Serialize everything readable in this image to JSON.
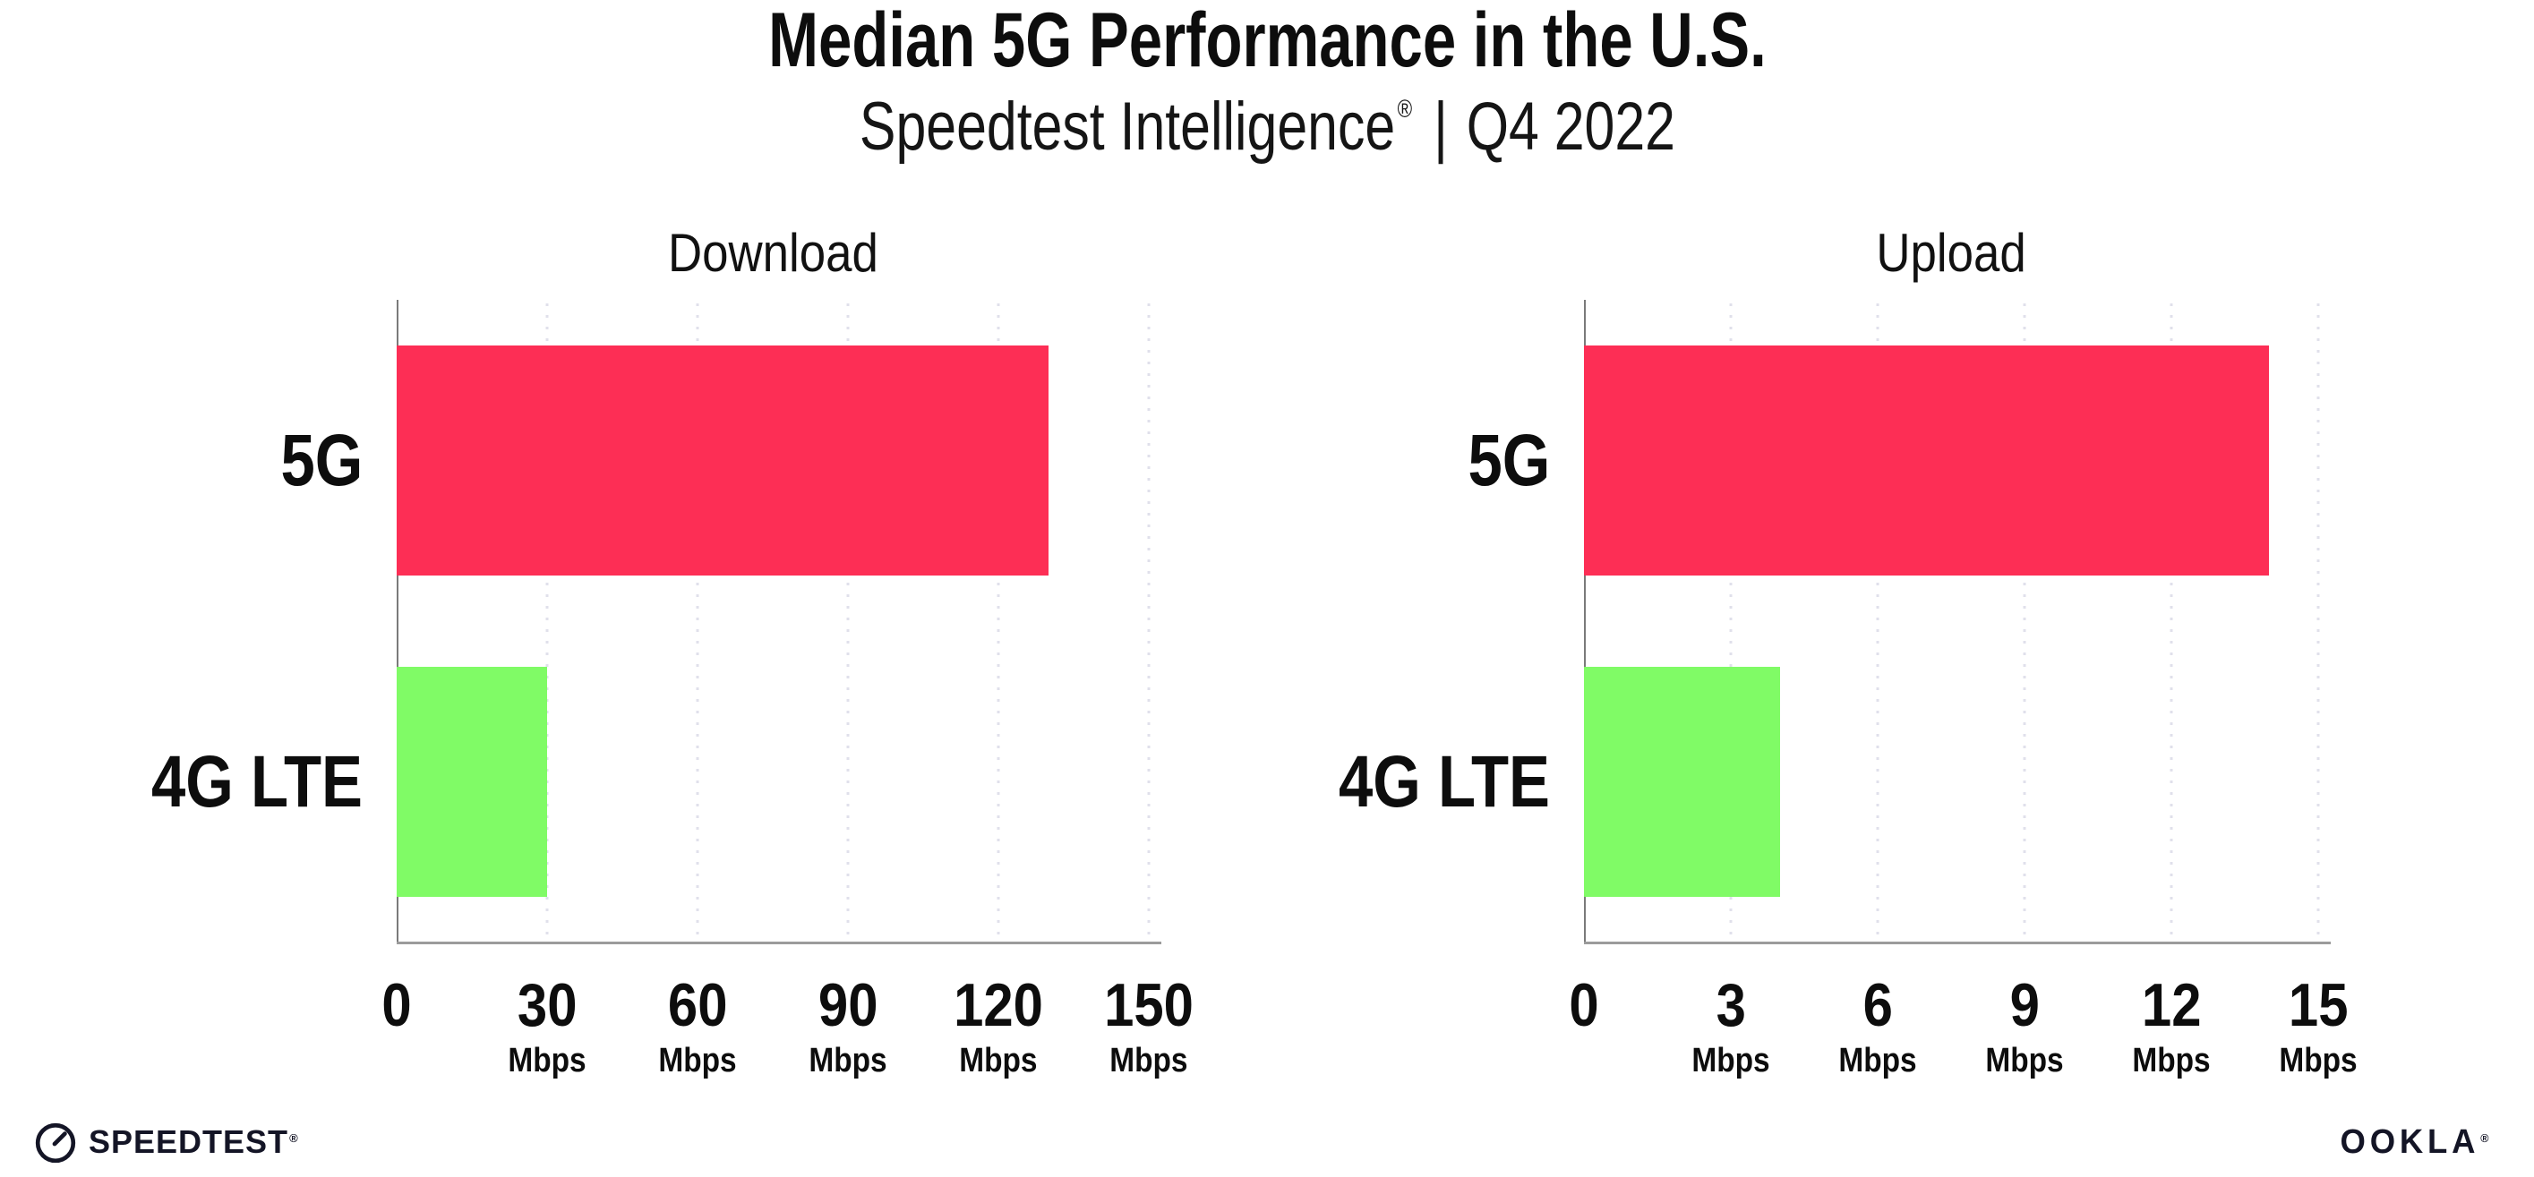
{
  "header": {
    "title": "Median 5G Performance in the U.S.",
    "subtitle": {
      "brand": "Speedtest Intelligence",
      "registered_mark": "®",
      "separator": "|",
      "period": "Q4 2022"
    }
  },
  "chart_data": [
    {
      "type": "bar",
      "orientation": "horizontal",
      "title": "Download",
      "categories": [
        "5G",
        "4G LTE"
      ],
      "values": [
        130,
        30
      ],
      "unit": "Mbps",
      "xlabel": "",
      "ylabel": "",
      "xlim": [
        0,
        150
      ],
      "xticks": [
        0,
        30,
        60,
        90,
        120,
        150
      ],
      "bar_colors": [
        "#fd2e55",
        "#80fb66"
      ],
      "grid": "dotted vertical gridlines at each tick",
      "legend": "none"
    },
    {
      "type": "bar",
      "orientation": "horizontal",
      "title": "Upload",
      "categories": [
        "5G",
        "4G LTE"
      ],
      "values": [
        14,
        4
      ],
      "unit": "Mbps",
      "xlabel": "",
      "ylabel": "",
      "xlim": [
        0,
        15
      ],
      "xticks": [
        0,
        3,
        6,
        9,
        12,
        15
      ],
      "bar_colors": [
        "#fd2e55",
        "#80fb66"
      ],
      "grid": "dotted vertical gridlines at each tick",
      "legend": "none"
    }
  ],
  "colors": {
    "bar_5g": "#fd2e55",
    "bar_4g_lte": "#80fb66",
    "grid_dots": "#e0e0eb",
    "axis_line": "#9b9b9b",
    "spine_line": "#7a7a7a",
    "text": "#0d0d0d",
    "background": "#ffffff"
  },
  "footer": {
    "speedtest_logo_text": "SPEEDTEST",
    "speedtest_trademark": "®",
    "speedtest_icon": "gauge-icon",
    "ookla_logo_text": "OOKLA",
    "ookla_trademark": "®"
  }
}
